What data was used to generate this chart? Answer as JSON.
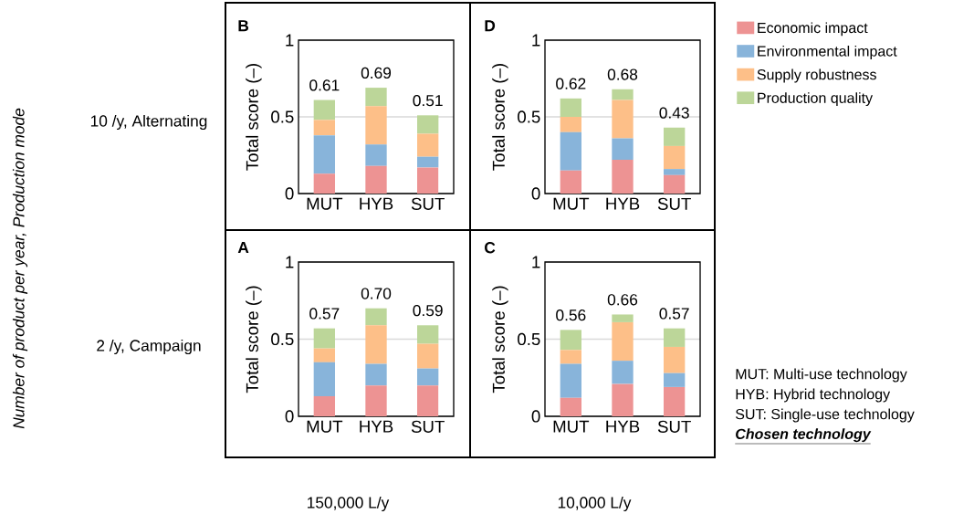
{
  "chart_data": [
    {
      "type": "bar",
      "title": "B",
      "ylabel": "Total score (–)",
      "stacked": true,
      "categories": [
        "MUT",
        "HYB",
        "SUT"
      ],
      "ylim": [
        0,
        1
      ],
      "yticks": [
        0,
        0.5,
        1
      ],
      "grid": "y",
      "legend": "right",
      "series": [
        {
          "name": "Economic impact",
          "color": "#ed9393",
          "values": [
            0.13,
            0.18,
            0.17
          ]
        },
        {
          "name": "Environmental impact",
          "color": "#88b4da",
          "values": [
            0.25,
            0.14,
            0.07
          ]
        },
        {
          "name": "Supply robustness",
          "color": "#fdbf88",
          "values": [
            0.1,
            0.25,
            0.15
          ]
        },
        {
          "name": "Production quality",
          "color": "#bcd699",
          "values": [
            0.13,
            0.12,
            0.12
          ]
        }
      ],
      "totals": [
        "0.61",
        "0.69",
        "0.51"
      ],
      "annotations": [
        "10 /y, Alternating",
        "2 /y, Campaign",
        "150,000 L/y",
        "10,000 L/y",
        "Number of product per year, Production mode",
        "MUT: Multi-use technology",
        "HYB: Hybrid technology",
        "SUT: Single-use technology",
        "Chosen technology"
      ]
    },
    {
      "type": "bar",
      "title": "D",
      "ylabel": "Total score (–)",
      "stacked": true,
      "categories": [
        "MUT",
        "HYB",
        "SUT"
      ],
      "ylim": [
        0,
        1
      ],
      "yticks": [
        0,
        0.5,
        1
      ],
      "grid": "y",
      "series": [
        {
          "color": "#ed9393",
          "values": [
            0.15,
            0.22,
            0.12
          ]
        },
        {
          "color": "#88b4da",
          "values": [
            0.25,
            0.14,
            0.04
          ]
        },
        {
          "color": "#fdbf88",
          "values": [
            0.1,
            0.25,
            0.15
          ]
        },
        {
          "color": "#bcd699",
          "values": [
            0.12,
            0.07,
            0.12
          ]
        }
      ],
      "totals": [
        "0.62",
        "0.68",
        "0.43"
      ]
    },
    {
      "type": "bar",
      "title": "A",
      "ylabel": "Total score (–)",
      "stacked": true,
      "categories": [
        "MUT",
        "HYB",
        "SUT"
      ],
      "ylim": [
        0,
        1
      ],
      "yticks": [
        0,
        0.5,
        1
      ],
      "grid": "y",
      "series": [
        {
          "color": "#ed9393",
          "values": [
            0.13,
            0.2,
            0.2
          ]
        },
        {
          "color": "#88b4da",
          "values": [
            0.22,
            0.14,
            0.11
          ]
        },
        {
          "color": "#fdbf88",
          "values": [
            0.09,
            0.25,
            0.16
          ]
        },
        {
          "color": "#bcd699",
          "values": [
            0.13,
            0.11,
            0.12
          ]
        }
      ],
      "totals": [
        "0.57",
        "0.70",
        "0.59"
      ]
    },
    {
      "type": "bar",
      "title": "C",
      "ylabel": "Total score (–)",
      "stacked": true,
      "categories": [
        "MUT",
        "HYB",
        "SUT"
      ],
      "ylim": [
        0,
        1
      ],
      "yticks": [
        0,
        0.5,
        1
      ],
      "grid": "y",
      "series": [
        {
          "color": "#ed9393",
          "values": [
            0.12,
            0.21,
            0.19
          ]
        },
        {
          "color": "#88b4da",
          "values": [
            0.22,
            0.15,
            0.09
          ]
        },
        {
          "color": "#fdbf88",
          "values": [
            0.09,
            0.25,
            0.17
          ]
        },
        {
          "color": "#bcd699",
          "values": [
            0.13,
            0.05,
            0.12
          ]
        }
      ],
      "totals": [
        "0.56",
        "0.66",
        "0.57"
      ]
    }
  ]
}
